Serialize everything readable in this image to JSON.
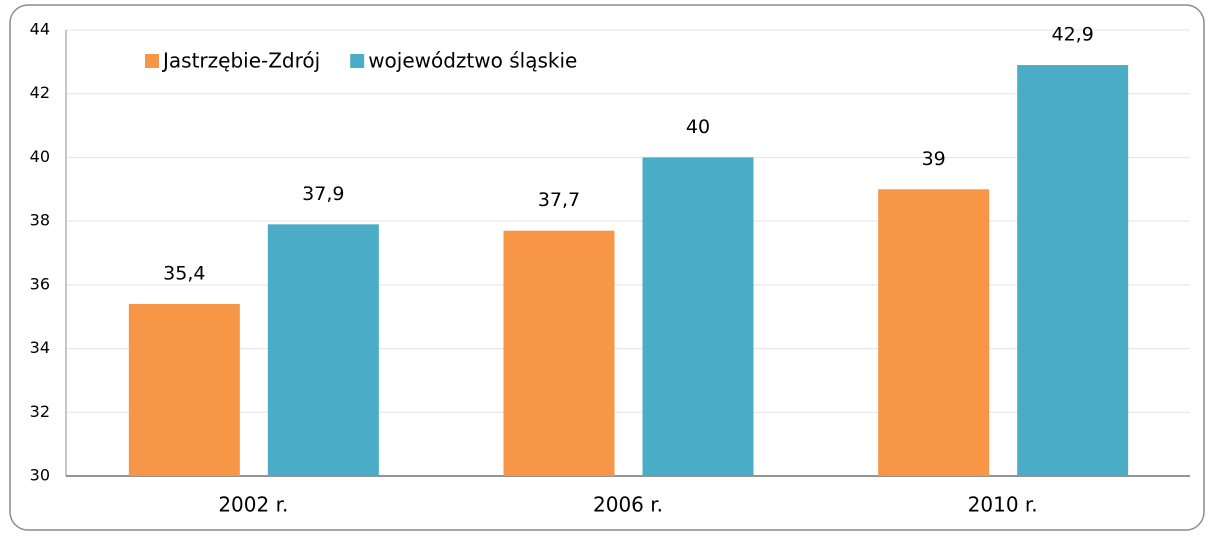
{
  "chart_data": {
    "type": "bar",
    "categories": [
      "2002 r.",
      "2006 r.",
      "2010 r."
    ],
    "series": [
      {
        "name": "Jastrzębie-Zdrój",
        "color": "#f79646",
        "values": [
          35.4,
          37.7,
          39
        ],
        "value_labels": [
          "35,4",
          "37,7",
          "39"
        ]
      },
      {
        "name": "województwo śląskie",
        "color": "#4bacc6",
        "values": [
          37.9,
          40,
          42.9
        ],
        "value_labels": [
          "37,9",
          "40",
          "42,9"
        ]
      }
    ],
    "ylim": [
      30,
      44
    ],
    "yticks": [
      30,
      32,
      34,
      36,
      38,
      40,
      42,
      44
    ],
    "grid": true,
    "legend": "top-left"
  }
}
